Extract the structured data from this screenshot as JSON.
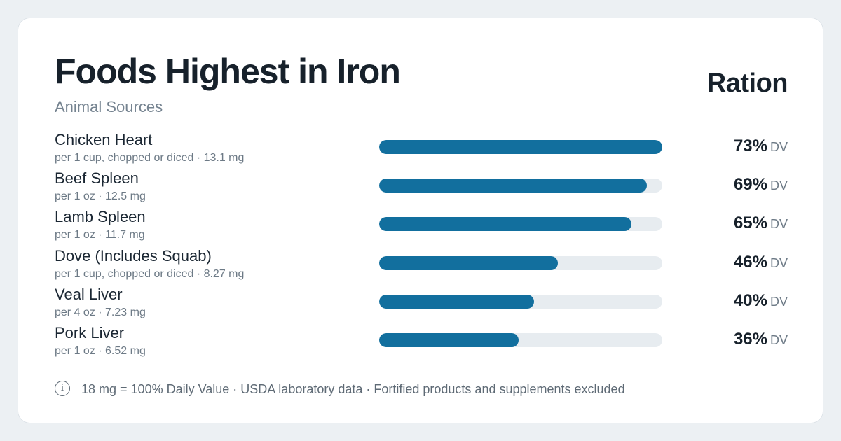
{
  "header": {
    "title": "Foods Highest in Iron",
    "subtitle": "Animal Sources",
    "brand": "Ration"
  },
  "chart_data": {
    "type": "bar",
    "orientation": "horizontal",
    "categories": [
      "Chicken Heart",
      "Beef Spleen",
      "Lamb Spleen",
      "Dove (Includes Squab)",
      "Veal Liver",
      "Pork Liver"
    ],
    "values": [
      73,
      69,
      65,
      46,
      40,
      36
    ],
    "unit": "% DV",
    "xlim": [
      0,
      73
    ],
    "bar_color": "#126f9e",
    "track_color": "#e7ecf0",
    "rows": [
      {
        "name": "Chicken Heart",
        "detail": "per 1 cup, chopped or diced · 13.1 mg",
        "pct_label": "73%",
        "dv_label": "DV"
      },
      {
        "name": "Beef Spleen",
        "detail": "per 1 oz · 12.5 mg",
        "pct_label": "69%",
        "dv_label": "DV"
      },
      {
        "name": "Lamb Spleen",
        "detail": "per 1 oz · 11.7 mg",
        "pct_label": "65%",
        "dv_label": "DV"
      },
      {
        "name": "Dove (Includes Squab)",
        "detail": "per 1 cup, chopped or diced · 8.27 mg",
        "pct_label": "46%",
        "dv_label": "DV"
      },
      {
        "name": "Veal Liver",
        "detail": "per 4 oz · 7.23 mg",
        "pct_label": "40%",
        "dv_label": "DV"
      },
      {
        "name": "Pork Liver",
        "detail": "per 1 oz · 6.52 mg",
        "pct_label": "36%",
        "dv_label": "DV"
      }
    ]
  },
  "footer": {
    "info_icon": "info-icon",
    "note": "18 mg = 100% Daily Value · USDA laboratory data · Fortified products and supplements excluded"
  }
}
